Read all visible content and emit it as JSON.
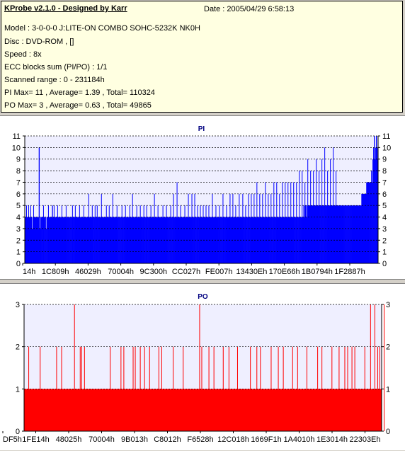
{
  "header": {
    "app_title": "KProbe v2.1.0 - Designed by Karr",
    "date": "Date : 2005/04/29 6:58:13"
  },
  "info_lines": [
    "Model : 3-0-0-0 J:LITE-ON COMBO SOHC-5232K NK0H",
    "Disc : DVD-ROM ,  []",
    "Speed : 8x",
    "ECC blocks sum (PI/PO) : 1/1",
    "Scanned range : 0 - 231184h",
    "PI Max= 11 , Average= 1.39 , Total= 110324",
    "PO Max= 3 , Average= 0.63 , Total= 49865"
  ],
  "colors": {
    "pi_fill": "#0000ff",
    "po_fill": "#ff0000",
    "plot_bg": "#efefff",
    "title": "#000080",
    "panel_bg": "#ffffff",
    "info_bg": "#ffffe1"
  },
  "chart_data": [
    {
      "type": "bar",
      "title": "PI",
      "ylim": [
        0,
        11
      ],
      "yticks": [
        "0",
        "1",
        "2",
        "3",
        "4",
        "5",
        "6",
        "7",
        "8",
        "9",
        "10",
        "11"
      ],
      "xticks": [
        "14h",
        "1C809h",
        "46029h",
        "70004h",
        "9C300h",
        "CC027h",
        "FE007h",
        "13430Eh",
        "170E66h",
        "1B0794h",
        "1F2887h"
      ],
      "grid": "horizontal dashed",
      "max": 11,
      "average": 1.39,
      "total": 110324,
      "series": [
        {
          "values": [
            4,
            4,
            3,
            4,
            4,
            4,
            4,
            4,
            4,
            4,
            3,
            4,
            4,
            4,
            4,
            4,
            4,
            4,
            4,
            4,
            10,
            3,
            4,
            4,
            4,
            4,
            4,
            4,
            4,
            4,
            3,
            4,
            4,
            4,
            4,
            4,
            4,
            4,
            4,
            5,
            4,
            4,
            4,
            4,
            4,
            4,
            4,
            4,
            4,
            4,
            4,
            4,
            4,
            4,
            4,
            4,
            4,
            4,
            4,
            4,
            4,
            4,
            4,
            4,
            4,
            4,
            4,
            4,
            4,
            4,
            4,
            4,
            4,
            4,
            4,
            4,
            4,
            4,
            4,
            4,
            4,
            4,
            4,
            4,
            4,
            4,
            4,
            4,
            4,
            4,
            4,
            4,
            4,
            4,
            4,
            4,
            4,
            4,
            4,
            4,
            4,
            4,
            4,
            4,
            4,
            4,
            4,
            4,
            4,
            4,
            4,
            4,
            4,
            4,
            4,
            4,
            4,
            4,
            4,
            4,
            4,
            4,
            4,
            4,
            4,
            4,
            4,
            4,
            4,
            4,
            4,
            4,
            4,
            4,
            4,
            4,
            4,
            4,
            4,
            4,
            4,
            4,
            4,
            4,
            4,
            4,
            4,
            4,
            4,
            4,
            4,
            4,
            4,
            4,
            4,
            4,
            4,
            4,
            4,
            4,
            4,
            4,
            4,
            4,
            4,
            4,
            4,
            4,
            4,
            4,
            4,
            4,
            4,
            4,
            4,
            4,
            4,
            4,
            4,
            4,
            4,
            4,
            4,
            4,
            4,
            4,
            4,
            4,
            4,
            4,
            4,
            4,
            4,
            4,
            4,
            4,
            4,
            4,
            4,
            4,
            4,
            4,
            4,
            4,
            4,
            4,
            4,
            4,
            4,
            4,
            4,
            4,
            4,
            4,
            4,
            4,
            4,
            4,
            4,
            4,
            4,
            4,
            4,
            4,
            4,
            4,
            4,
            4,
            4,
            4,
            4,
            4,
            4,
            4,
            4,
            4,
            4,
            4,
            4,
            4,
            4,
            4,
            4,
            4,
            4,
            4,
            4,
            4,
            4,
            4,
            4,
            4,
            4,
            4,
            4,
            4,
            4,
            4,
            4,
            4,
            4,
            4,
            4,
            4,
            4,
            4,
            4,
            4,
            4,
            4,
            4,
            4,
            4,
            4,
            4,
            4,
            4,
            4,
            4,
            4,
            4,
            4,
            4,
            4,
            4,
            4,
            4,
            4,
            4,
            4,
            4,
            4,
            4,
            4,
            4,
            4,
            4,
            4,
            4,
            4,
            4,
            4,
            4,
            4,
            4,
            4,
            4,
            4,
            4,
            4,
            4,
            4,
            4,
            4,
            4,
            4,
            4,
            4,
            4,
            4,
            4,
            4,
            4,
            4,
            4,
            4,
            4,
            4,
            4,
            4,
            4,
            4,
            4,
            4,
            4,
            4,
            4,
            4,
            4,
            4,
            4,
            4,
            4,
            4,
            4,
            4,
            4,
            4,
            4,
            4,
            4,
            4,
            4,
            4,
            4,
            4,
            4,
            4,
            4,
            4,
            4,
            4,
            4,
            4,
            4,
            4,
            4,
            4,
            4,
            4,
            4,
            4,
            4,
            4,
            4,
            4,
            4,
            4,
            4,
            4,
            4,
            4,
            4,
            4,
            4,
            4,
            4,
            4,
            4,
            4,
            4,
            4,
            4,
            4,
            4,
            4,
            4,
            4,
            4,
            5,
            4,
            5,
            5,
            4,
            5,
            5,
            5,
            5,
            5,
            5,
            5,
            5,
            5,
            5,
            5,
            5,
            5,
            5,
            5,
            5,
            5,
            5,
            5,
            5,
            5,
            5,
            5,
            5,
            5,
            5,
            5,
            5,
            5,
            5,
            5,
            5,
            5,
            5,
            5,
            5,
            5,
            5,
            5,
            5,
            5,
            5,
            5,
            5,
            5,
            5,
            5,
            5,
            5,
            5,
            5,
            5,
            5,
            5,
            5,
            5,
            5,
            5,
            5,
            5,
            5,
            5,
            5,
            5,
            5,
            5,
            5,
            5,
            5,
            5,
            5,
            5,
            5,
            5,
            5,
            5,
            5,
            5,
            6,
            6,
            6,
            6,
            6,
            6,
            6,
            7,
            7,
            7,
            7,
            7,
            7,
            7,
            8,
            7,
            9,
            10,
            11,
            9,
            10,
            11,
            10,
            9
          ],
          "spikes": [
            [
              2,
              5
            ],
            [
              5,
              5
            ],
            [
              8,
              5
            ],
            [
              12,
              5
            ],
            [
              14,
              4
            ],
            [
              20,
              10
            ],
            [
              26,
              5
            ],
            [
              33,
              5
            ],
            [
              41,
              5
            ],
            [
              46,
              5
            ],
            [
              52,
              5
            ],
            [
              58,
              5
            ],
            [
              62,
              4
            ],
            [
              67,
              5
            ],
            [
              71,
              5
            ],
            [
              77,
              5
            ],
            [
              83,
              5
            ],
            [
              90,
              6
            ],
            [
              95,
              5
            ],
            [
              99,
              5
            ],
            [
              102,
              5
            ],
            [
              108,
              6
            ],
            [
              115,
              5
            ],
            [
              119,
              5
            ],
            [
              124,
              6
            ],
            [
              130,
              5
            ],
            [
              137,
              5
            ],
            [
              142,
              5
            ],
            [
              148,
              5
            ],
            [
              152,
              6
            ],
            [
              158,
              5
            ],
            [
              163,
              5
            ],
            [
              168,
              5
            ],
            [
              172,
              5
            ],
            [
              178,
              5
            ],
            [
              183,
              6
            ],
            [
              188,
              5
            ],
            [
              195,
              5
            ],
            [
              200,
              5
            ],
            [
              206,
              5
            ],
            [
              210,
              6
            ],
            [
              215,
              7
            ],
            [
              220,
              5
            ],
            [
              226,
              5
            ],
            [
              231,
              6
            ],
            [
              236,
              6
            ],
            [
              240,
              6
            ],
            [
              244,
              5
            ],
            [
              248,
              5
            ],
            [
              252,
              5
            ],
            [
              256,
              5
            ],
            [
              260,
              5
            ],
            [
              265,
              6
            ],
            [
              270,
              5
            ],
            [
              275,
              5
            ],
            [
              280,
              6
            ],
            [
              285,
              5
            ],
            [
              290,
              6
            ],
            [
              294,
              6
            ],
            [
              298,
              5
            ],
            [
              303,
              6
            ],
            [
              308,
              6
            ],
            [
              312,
              5
            ],
            [
              316,
              6
            ],
            [
              320,
              6
            ],
            [
              324,
              6
            ],
            [
              328,
              7
            ],
            [
              332,
              6
            ],
            [
              336,
              6
            ],
            [
              340,
              7
            ],
            [
              344,
              6
            ],
            [
              348,
              6
            ],
            [
              352,
              7
            ],
            [
              356,
              7
            ],
            [
              360,
              6
            ],
            [
              364,
              7
            ],
            [
              368,
              7
            ],
            [
              372,
              7
            ],
            [
              376,
              7
            ],
            [
              380,
              7
            ],
            [
              384,
              7
            ],
            [
              388,
              8
            ],
            [
              392,
              8
            ],
            [
              396,
              7
            ],
            [
              400,
              9
            ],
            [
              404,
              8
            ],
            [
              408,
              8
            ],
            [
              412,
              9
            ],
            [
              416,
              8
            ],
            [
              420,
              9
            ],
            [
              424,
              10
            ],
            [
              428,
              8
            ],
            [
              432,
              9
            ],
            [
              436,
              10
            ],
            [
              440,
              8
            ]
          ]
        }
      ]
    },
    {
      "type": "bar",
      "title": "PO",
      "ylim": [
        0,
        3
      ],
      "yticks": [
        "0",
        "1",
        "2",
        "3"
      ],
      "xticks": [
        "DF5h",
        "1FE14h",
        "48025h",
        "70004h",
        "9B013h",
        "C8012h",
        "F6528h",
        "12C018h",
        "1669F1h",
        "1A4010h",
        "1E3014h",
        "22303Eh"
      ],
      "grid": "horizontal dashed",
      "max": 3,
      "average": 0.63,
      "total": 49865,
      "series": [
        {
          "baseline": 1,
          "spikes": [
            [
              6,
              2
            ],
            [
              22,
              2
            ],
            [
              45,
              2
            ],
            [
              52,
              2
            ],
            [
              70,
              3
            ],
            [
              78,
              2
            ],
            [
              80,
              2
            ],
            [
              84,
              2
            ],
            [
              120,
              2
            ],
            [
              135,
              2
            ],
            [
              139,
              2
            ],
            [
              152,
              2
            ],
            [
              155,
              2
            ],
            [
              162,
              2
            ],
            [
              168,
              2
            ],
            [
              175,
              2
            ],
            [
              188,
              2
            ],
            [
              192,
              2
            ],
            [
              208,
              2
            ],
            [
              222,
              2
            ],
            [
              245,
              3
            ],
            [
              248,
              2
            ],
            [
              258,
              2
            ],
            [
              265,
              2
            ],
            [
              278,
              2
            ],
            [
              286,
              2
            ],
            [
              298,
              2
            ],
            [
              316,
              2
            ],
            [
              325,
              2
            ],
            [
              330,
              2
            ],
            [
              345,
              2
            ],
            [
              355,
              2
            ],
            [
              362,
              2
            ],
            [
              375,
              2
            ],
            [
              382,
              2
            ],
            [
              395,
              2
            ],
            [
              410,
              2
            ],
            [
              416,
              2
            ],
            [
              430,
              2
            ],
            [
              440,
              2
            ],
            [
              448,
              2
            ],
            [
              452,
              2
            ],
            [
              458,
              2
            ],
            [
              462,
              2
            ],
            [
              476,
              2
            ],
            [
              484,
              3
            ],
            [
              490,
              3
            ],
            [
              494,
              2
            ],
            [
              497,
              2
            ],
            [
              503,
              3
            ]
          ]
        }
      ]
    }
  ]
}
